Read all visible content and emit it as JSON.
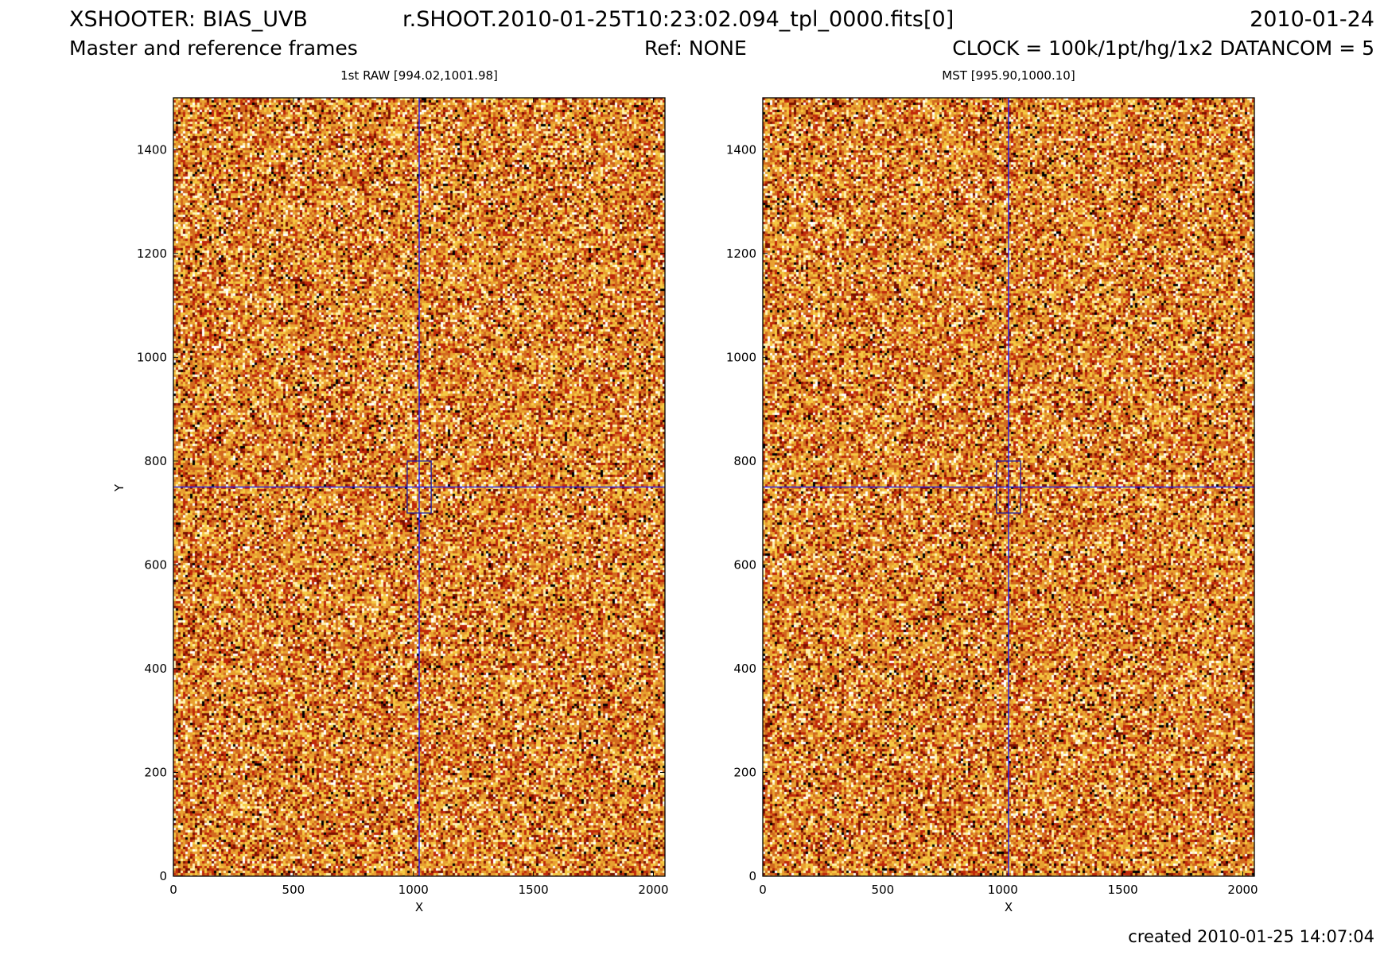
{
  "header": {
    "title_left": "XSHOOTER: BIAS_UVB",
    "title_center": "r.SHOOT.2010-01-25T10:23:02.094_tpl_0000.fits[0]",
    "title_right": "2010-01-24",
    "subtitle_left": "Master and reference frames",
    "subtitle_center": "Ref: NONE",
    "subtitle_right": "CLOCK = 100k/1pt/hg/1x2 DATANCOM = 5"
  },
  "footer": {
    "created": "created 2010-01-25 14:07:04"
  },
  "colors": {
    "colormap": [
      "#000000",
      "#7a1000",
      "#c0280a",
      "#d2691e",
      "#e8a030",
      "#f5c842",
      "#fff2b0",
      "#ffffff"
    ],
    "crosshair": "#1a1aff",
    "box": "#1a1aa0"
  },
  "chart_data": [
    {
      "type": "heatmap",
      "title": "1st RAW [994.02,1001.98]",
      "xlabel": "X",
      "ylabel": "Y",
      "xlim": [
        0,
        2048
      ],
      "ylim": [
        0,
        1500
      ],
      "xticks": [
        0,
        500,
        1000,
        1500,
        2000
      ],
      "yticks": [
        0,
        200,
        400,
        600,
        800,
        1000,
        1200,
        1400
      ],
      "cut_levels": [
        994.02,
        1001.98
      ],
      "crosshair": {
        "x": 1024,
        "y": 750
      },
      "box": {
        "x": [
          974,
          1074
        ],
        "y": [
          700,
          800
        ]
      },
      "pixel_range": [
        994.02,
        1001.98
      ]
    },
    {
      "type": "heatmap",
      "title": "MST [995.90,1000.10]",
      "xlabel": "X",
      "ylabel": "",
      "xlim": [
        0,
        2048
      ],
      "ylim": [
        0,
        1500
      ],
      "xticks": [
        0,
        500,
        1000,
        1500,
        2000
      ],
      "yticks": [
        0,
        200,
        400,
        600,
        800,
        1000,
        1200,
        1400
      ],
      "cut_levels": [
        995.9,
        1000.1
      ],
      "crosshair": {
        "x": 1024,
        "y": 750
      },
      "box": {
        "x": [
          974,
          1074
        ],
        "y": [
          700,
          800
        ]
      },
      "pixel_range": [
        995.9,
        1000.1
      ]
    }
  ]
}
